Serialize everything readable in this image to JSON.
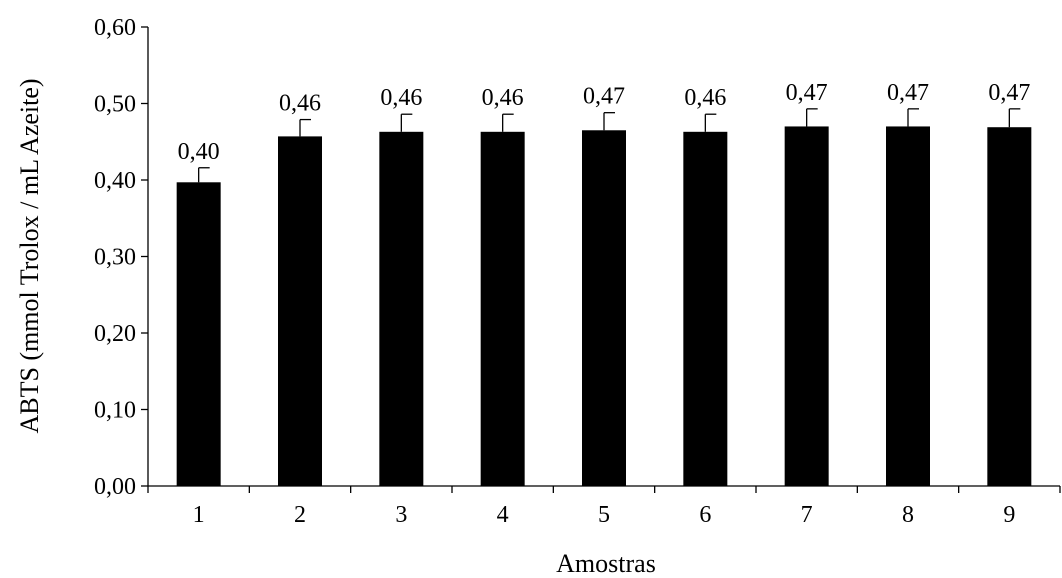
{
  "chart_data": {
    "type": "bar",
    "title": "",
    "xlabel": "Amostras",
    "ylabel": "ABTS (mmol Trolox / mL Azeite)",
    "categories": [
      "1",
      "2",
      "3",
      "4",
      "5",
      "6",
      "7",
      "8",
      "9"
    ],
    "values": [
      0.397,
      0.457,
      0.463,
      0.463,
      0.465,
      0.463,
      0.47,
      0.47,
      0.469
    ],
    "errors": [
      0.019,
      0.022,
      0.023,
      0.023,
      0.023,
      0.023,
      0.023,
      0.023,
      0.024
    ],
    "data_labels": [
      "0,40",
      "0,46",
      "0,46",
      "0,46",
      "0,47",
      "0,46",
      "0,47",
      "0,47",
      "0,47"
    ],
    "ylim": [
      0,
      0.6
    ],
    "yticks": [
      0,
      0.1,
      0.2,
      0.3,
      0.4,
      0.5,
      0.6
    ],
    "ytick_labels": [
      "0,00",
      "0,10",
      "0,20",
      "0,30",
      "0,40",
      "0,50",
      "0,60"
    ],
    "grid": false,
    "legend": "none",
    "bar_color": "#000000"
  }
}
